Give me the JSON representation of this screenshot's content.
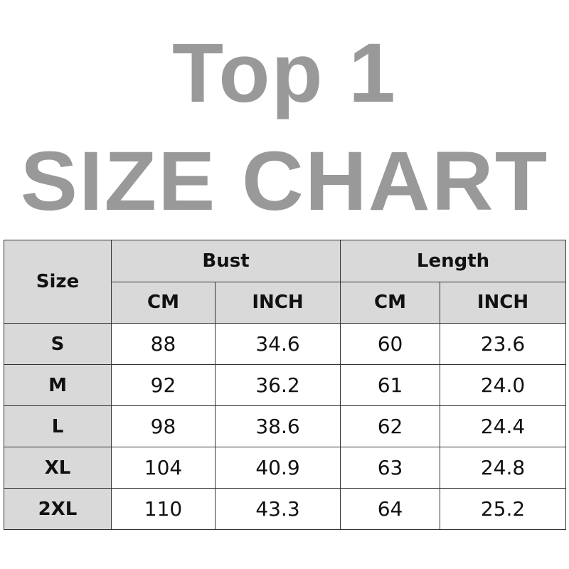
{
  "title_line1": "Top 1",
  "title_line2": "SIZE CHART",
  "colors": {
    "title": "#999999",
    "header_bg": "#d9d9d9"
  },
  "table": {
    "size_header": "Size",
    "groups": [
      "Bust",
      "Length"
    ],
    "units": [
      "CM",
      "INCH",
      "CM",
      "INCH"
    ],
    "rows": [
      [
        "S",
        "88",
        "34.6",
        "60",
        "23.6"
      ],
      [
        "M",
        "92",
        "36.2",
        "61",
        "24.0"
      ],
      [
        "L",
        "98",
        "38.6",
        "62",
        "24.4"
      ],
      [
        "XL",
        "104",
        "40.9",
        "63",
        "24.8"
      ],
      [
        "2XL",
        "110",
        "43.3",
        "64",
        "25.2"
      ]
    ]
  }
}
